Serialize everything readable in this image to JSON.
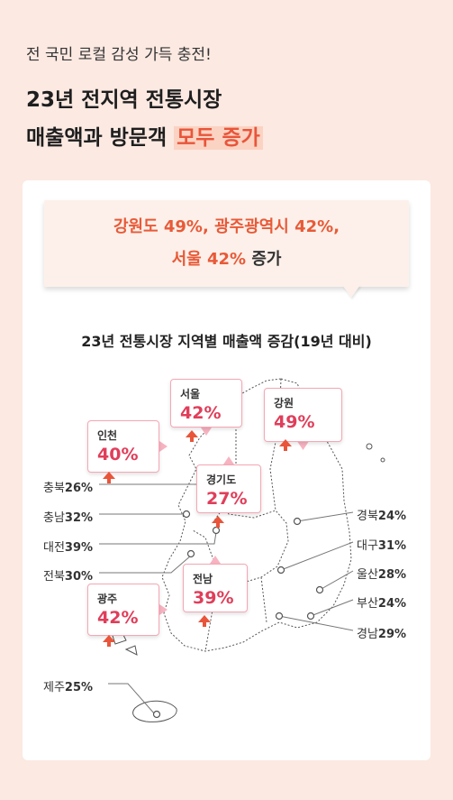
{
  "header": {
    "intro": "전 국민 로컬 감성 가득 충전!",
    "headline_line1": "23년 전지역 전통시장",
    "headline_line2_prefix": "매출액과 방문객 ",
    "headline_line2_highlight": "모두 증가"
  },
  "bubble": {
    "line1": "강원도 49%, 광주광역시 42%,",
    "line2_highlight": "서울 42%",
    "line2_suffix": " 증가"
  },
  "chart_data": {
    "type": "map",
    "title": "23년 전통시장 지역별 매출액 증감(19년 대비)",
    "unit": "%",
    "regions": [
      {
        "name": "서울",
        "value": 42,
        "highlight": true
      },
      {
        "name": "강원",
        "value": 49,
        "highlight": true
      },
      {
        "name": "인천",
        "value": 40,
        "highlight": true
      },
      {
        "name": "경기도",
        "value": 27,
        "highlight": true
      },
      {
        "name": "전남",
        "value": 39,
        "highlight": true
      },
      {
        "name": "광주",
        "value": 42,
        "highlight": true
      },
      {
        "name": "충북",
        "value": 26
      },
      {
        "name": "충남",
        "value": 32
      },
      {
        "name": "대전",
        "value": 39
      },
      {
        "name": "전북",
        "value": 30
      },
      {
        "name": "제주",
        "value": 25
      },
      {
        "name": "경북",
        "value": 24
      },
      {
        "name": "대구",
        "value": 31
      },
      {
        "name": "울산",
        "value": 28
      },
      {
        "name": "부산",
        "value": 24
      },
      {
        "name": "경남",
        "value": 29
      }
    ]
  },
  "colors": {
    "accent": "#e85a38",
    "value_red": "#e03e5a",
    "background": "#fbe9e2"
  }
}
